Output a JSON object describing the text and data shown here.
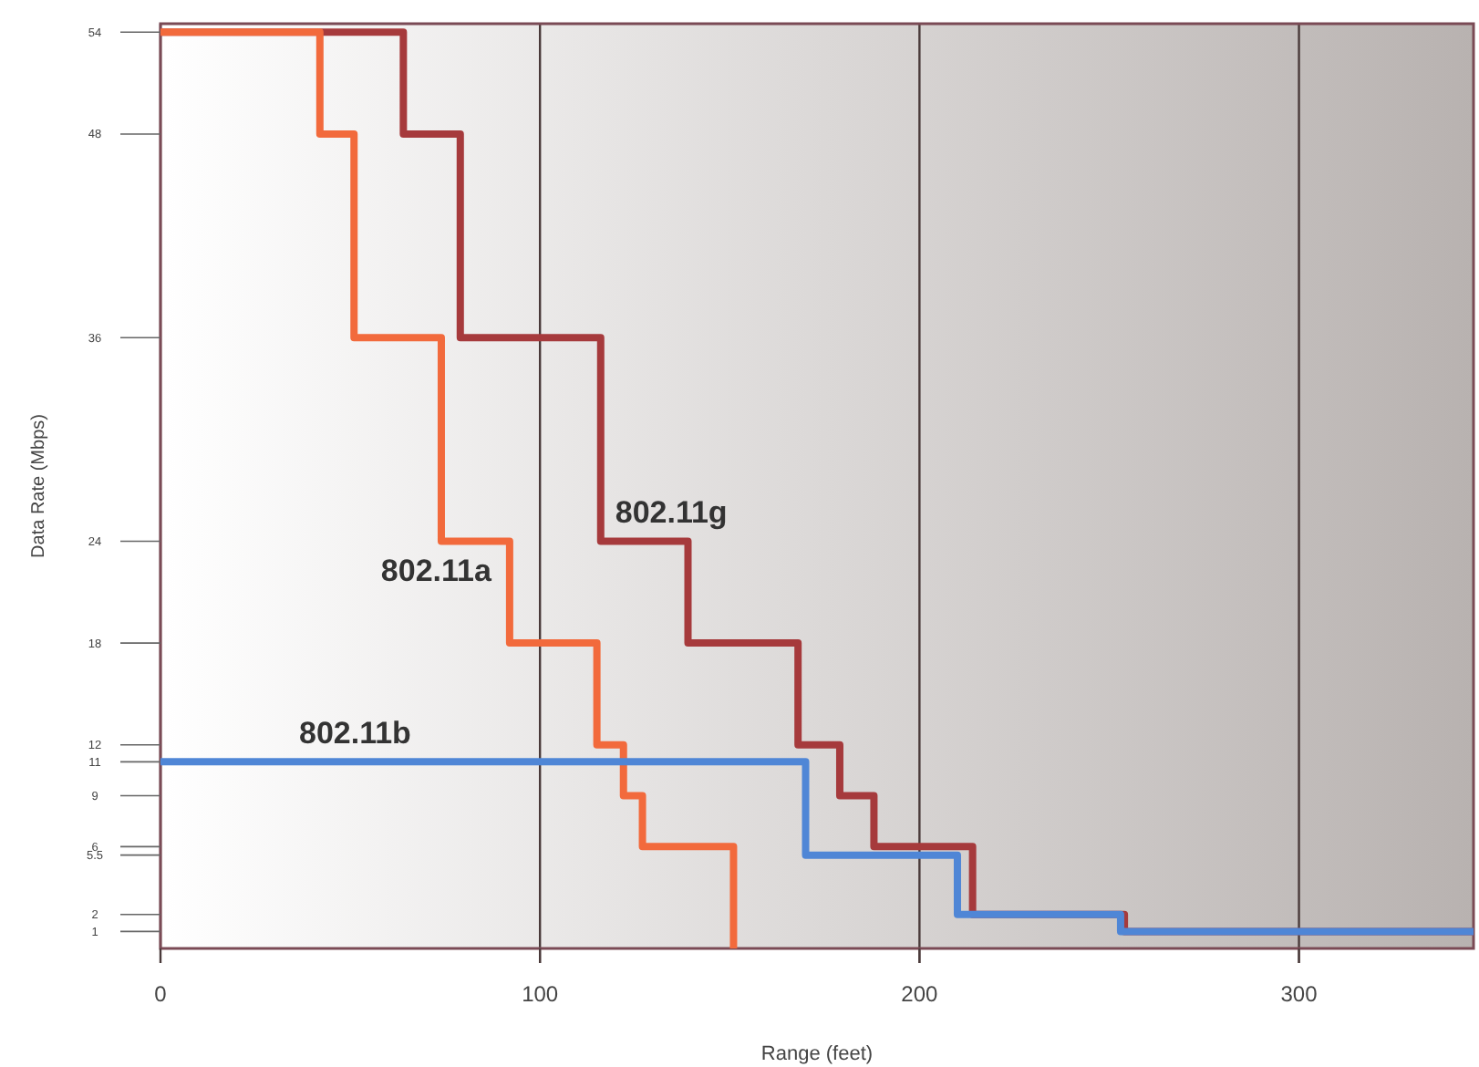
{
  "chart_data": {
    "type": "step",
    "xlabel": "Range (feet)",
    "ylabel": "Data Rate (Mbps)",
    "xlim": [
      0,
      346
    ],
    "xticks": [
      0,
      100,
      200,
      300
    ],
    "ylim": [
      0,
      54.5
    ],
    "yticks": [
      1,
      2,
      5.5,
      6,
      9,
      11,
      12,
      18,
      24,
      36,
      48,
      54
    ],
    "grid": "x",
    "line_style": "solid",
    "marker": "none",
    "series": [
      {
        "name": "802.11g",
        "color": "#a63a3c",
        "x": [
          0,
          64,
          79,
          116,
          139,
          168,
          179,
          188,
          214,
          254,
          346
        ],
        "values": [
          54,
          48,
          36,
          24,
          18,
          12,
          9,
          6,
          2,
          1,
          1
        ]
      },
      {
        "name": "802.11a",
        "color": "#f26a3c",
        "x": [
          0,
          42,
          51,
          74,
          92,
          115,
          122,
          127,
          151
        ],
        "values": [
          54,
          48,
          36,
          24,
          18,
          12,
          9,
          6,
          0
        ]
      },
      {
        "name": "802.11b",
        "color": "#4f86d6",
        "x": [
          0,
          170,
          210,
          253,
          346
        ],
        "values": [
          11,
          5.5,
          2,
          1,
          1
        ]
      }
    ]
  }
}
